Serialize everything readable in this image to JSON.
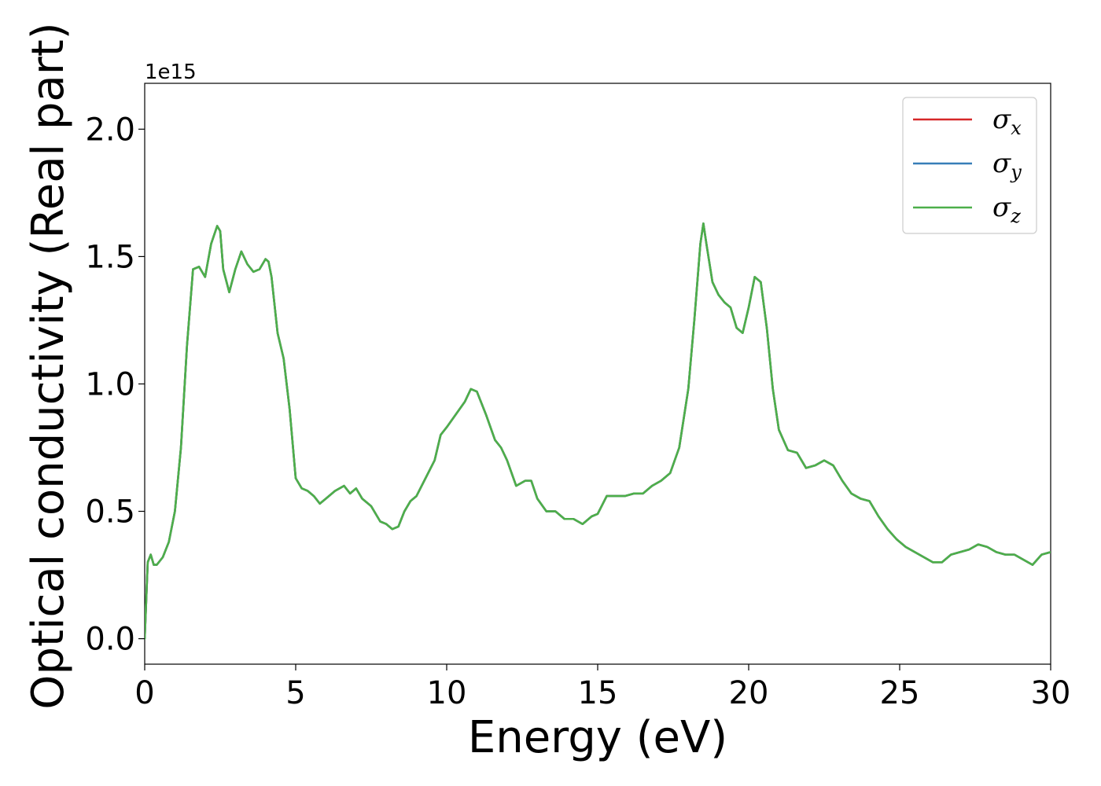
{
  "chart_data": {
    "type": "line",
    "title": "",
    "xlabel": "Energy (eV)",
    "ylabel": "Optical conductivity (Real part)",
    "y_offset_label": "1e15",
    "xlim": [
      0,
      30
    ],
    "ylim": [
      -0.1,
      2.18
    ],
    "x_ticks": [
      0,
      5,
      10,
      15,
      20,
      25,
      30
    ],
    "x_tick_labels": [
      "0",
      "5",
      "10",
      "15",
      "20",
      "25",
      "30"
    ],
    "y_ticks": [
      0.0,
      0.5,
      1.0,
      1.5,
      2.0
    ],
    "y_tick_labels": [
      "0.0",
      "0.5",
      "1.0",
      "1.5",
      "2.0"
    ],
    "grid": false,
    "legend_position": "top-right",
    "series": [
      {
        "name": "σx",
        "label_base": "σ",
        "label_sub": "x",
        "color": "#d62728",
        "x": [
          0,
          0.1,
          0.2,
          0.3,
          0.4,
          0.6,
          0.8,
          1.0,
          1.2,
          1.4,
          1.6,
          1.8,
          2.0,
          2.2,
          2.4,
          2.5,
          2.6,
          2.8,
          3.0,
          3.2,
          3.4,
          3.6,
          3.8,
          4.0,
          4.1,
          4.2,
          4.4,
          4.6,
          4.8,
          5.0,
          5.2,
          5.4,
          5.6,
          5.8,
          6.0,
          6.3,
          6.6,
          6.8,
          7.0,
          7.2,
          7.5,
          7.8,
          8.0,
          8.2,
          8.4,
          8.6,
          8.8,
          9.0,
          9.3,
          9.6,
          9.8,
          10.0,
          10.3,
          10.6,
          10.8,
          11.0,
          11.3,
          11.6,
          11.8,
          12.0,
          12.3,
          12.6,
          12.8,
          13.0,
          13.3,
          13.6,
          13.9,
          14.2,
          14.5,
          14.8,
          15.0,
          15.3,
          15.6,
          15.9,
          16.2,
          16.5,
          16.8,
          17.1,
          17.4,
          17.7,
          18.0,
          18.2,
          18.4,
          18.5,
          18.6,
          18.8,
          19.0,
          19.2,
          19.4,
          19.6,
          19.8,
          20.0,
          20.2,
          20.4,
          20.6,
          20.8,
          21.0,
          21.3,
          21.6,
          21.9,
          22.2,
          22.5,
          22.8,
          23.1,
          23.4,
          23.7,
          24.0,
          24.3,
          24.6,
          24.9,
          25.2,
          25.5,
          25.8,
          26.1,
          26.4,
          26.7,
          27.0,
          27.3,
          27.6,
          27.9,
          28.2,
          28.5,
          28.8,
          29.1,
          29.4,
          29.7,
          30.0
        ],
        "values": [
          0.0,
          0.3,
          0.33,
          0.29,
          0.29,
          0.32,
          0.38,
          0.5,
          0.75,
          1.15,
          1.45,
          1.46,
          1.42,
          1.55,
          1.62,
          1.6,
          1.45,
          1.36,
          1.45,
          1.52,
          1.47,
          1.44,
          1.45,
          1.49,
          1.48,
          1.42,
          1.2,
          1.1,
          0.9,
          0.63,
          0.59,
          0.58,
          0.56,
          0.53,
          0.55,
          0.58,
          0.6,
          0.57,
          0.59,
          0.55,
          0.52,
          0.46,
          0.45,
          0.43,
          0.44,
          0.5,
          0.54,
          0.56,
          0.63,
          0.7,
          0.8,
          0.83,
          0.88,
          0.93,
          0.98,
          0.97,
          0.88,
          0.78,
          0.75,
          0.7,
          0.6,
          0.62,
          0.62,
          0.55,
          0.5,
          0.5,
          0.47,
          0.47,
          0.45,
          0.48,
          0.49,
          0.56,
          0.56,
          0.56,
          0.57,
          0.57,
          0.6,
          0.62,
          0.65,
          0.75,
          0.98,
          1.25,
          1.55,
          1.63,
          1.55,
          1.4,
          1.35,
          1.32,
          1.3,
          1.22,
          1.2,
          1.3,
          1.42,
          1.4,
          1.22,
          0.98,
          0.82,
          0.74,
          0.73,
          0.67,
          0.68,
          0.7,
          0.68,
          0.62,
          0.57,
          0.55,
          0.54,
          0.48,
          0.43,
          0.39,
          0.36,
          0.34,
          0.32,
          0.3,
          0.3,
          0.33,
          0.34,
          0.35,
          0.37,
          0.36,
          0.34,
          0.33,
          0.33,
          0.31,
          0.29,
          0.33,
          0.34
        ]
      },
      {
        "name": "σy",
        "label_base": "σ",
        "label_sub": "y",
        "color": "#377eb8",
        "x": [
          0,
          0.1,
          0.2,
          0.3,
          0.4,
          0.6,
          0.8,
          1.0,
          1.2,
          1.4,
          1.6,
          1.8,
          2.0,
          2.2,
          2.4,
          2.5,
          2.6,
          2.8,
          3.0,
          3.2,
          3.4,
          3.6,
          3.8,
          4.0,
          4.1,
          4.2,
          4.4,
          4.6,
          4.8,
          5.0,
          5.2,
          5.4,
          5.6,
          5.8,
          6.0,
          6.3,
          6.6,
          6.8,
          7.0,
          7.2,
          7.5,
          7.8,
          8.0,
          8.2,
          8.4,
          8.6,
          8.8,
          9.0,
          9.3,
          9.6,
          9.8,
          10.0,
          10.3,
          10.6,
          10.8,
          11.0,
          11.3,
          11.6,
          11.8,
          12.0,
          12.3,
          12.6,
          12.8,
          13.0,
          13.3,
          13.6,
          13.9,
          14.2,
          14.5,
          14.8,
          15.0,
          15.3,
          15.6,
          15.9,
          16.2,
          16.5,
          16.8,
          17.1,
          17.4,
          17.7,
          18.0,
          18.2,
          18.4,
          18.5,
          18.6,
          18.8,
          19.0,
          19.2,
          19.4,
          19.6,
          19.8,
          20.0,
          20.2,
          20.4,
          20.6,
          20.8,
          21.0,
          21.3,
          21.6,
          21.9,
          22.2,
          22.5,
          22.8,
          23.1,
          23.4,
          23.7,
          24.0,
          24.3,
          24.6,
          24.9,
          25.2,
          25.5,
          25.8,
          26.1,
          26.4,
          26.7,
          27.0,
          27.3,
          27.6,
          27.9,
          28.2,
          28.5,
          28.8,
          29.1,
          29.4,
          29.7,
          30.0
        ],
        "values": [
          0.0,
          0.3,
          0.33,
          0.29,
          0.29,
          0.32,
          0.38,
          0.5,
          0.75,
          1.15,
          1.45,
          1.46,
          1.42,
          1.55,
          1.62,
          1.6,
          1.45,
          1.36,
          1.45,
          1.52,
          1.47,
          1.44,
          1.45,
          1.49,
          1.48,
          1.42,
          1.2,
          1.1,
          0.9,
          0.63,
          0.59,
          0.58,
          0.56,
          0.53,
          0.55,
          0.58,
          0.6,
          0.57,
          0.59,
          0.55,
          0.52,
          0.46,
          0.45,
          0.43,
          0.44,
          0.5,
          0.54,
          0.56,
          0.63,
          0.7,
          0.8,
          0.83,
          0.88,
          0.93,
          0.98,
          0.97,
          0.88,
          0.78,
          0.75,
          0.7,
          0.6,
          0.62,
          0.62,
          0.55,
          0.5,
          0.5,
          0.47,
          0.47,
          0.45,
          0.48,
          0.49,
          0.56,
          0.56,
          0.56,
          0.57,
          0.57,
          0.6,
          0.62,
          0.65,
          0.75,
          0.98,
          1.25,
          1.55,
          1.63,
          1.55,
          1.4,
          1.35,
          1.32,
          1.3,
          1.22,
          1.2,
          1.3,
          1.42,
          1.4,
          1.22,
          0.98,
          0.82,
          0.74,
          0.73,
          0.67,
          0.68,
          0.7,
          0.68,
          0.62,
          0.57,
          0.55,
          0.54,
          0.48,
          0.43,
          0.39,
          0.36,
          0.34,
          0.32,
          0.3,
          0.3,
          0.33,
          0.34,
          0.35,
          0.37,
          0.36,
          0.34,
          0.33,
          0.33,
          0.31,
          0.29,
          0.33,
          0.34
        ]
      },
      {
        "name": "σz",
        "label_base": "σ",
        "label_sub": "z",
        "color": "#4daf4a",
        "x": [
          0,
          0.1,
          0.2,
          0.3,
          0.4,
          0.6,
          0.8,
          1.0,
          1.2,
          1.4,
          1.6,
          1.8,
          2.0,
          2.2,
          2.4,
          2.5,
          2.6,
          2.8,
          3.0,
          3.2,
          3.4,
          3.6,
          3.8,
          4.0,
          4.1,
          4.2,
          4.4,
          4.6,
          4.8,
          5.0,
          5.2,
          5.4,
          5.6,
          5.8,
          6.0,
          6.3,
          6.6,
          6.8,
          7.0,
          7.2,
          7.5,
          7.8,
          8.0,
          8.2,
          8.4,
          8.6,
          8.8,
          9.0,
          9.3,
          9.6,
          9.8,
          10.0,
          10.3,
          10.6,
          10.8,
          11.0,
          11.3,
          11.6,
          11.8,
          12.0,
          12.3,
          12.6,
          12.8,
          13.0,
          13.3,
          13.6,
          13.9,
          14.2,
          14.5,
          14.8,
          15.0,
          15.3,
          15.6,
          15.9,
          16.2,
          16.5,
          16.8,
          17.1,
          17.4,
          17.7,
          18.0,
          18.2,
          18.4,
          18.5,
          18.6,
          18.8,
          19.0,
          19.2,
          19.4,
          19.6,
          19.8,
          20.0,
          20.2,
          20.4,
          20.6,
          20.8,
          21.0,
          21.3,
          21.6,
          21.9,
          22.2,
          22.5,
          22.8,
          23.1,
          23.4,
          23.7,
          24.0,
          24.3,
          24.6,
          24.9,
          25.2,
          25.5,
          25.8,
          26.1,
          26.4,
          26.7,
          27.0,
          27.3,
          27.6,
          27.9,
          28.2,
          28.5,
          28.8,
          29.1,
          29.4,
          29.7,
          30.0
        ],
        "values": [
          0.0,
          0.3,
          0.33,
          0.29,
          0.29,
          0.32,
          0.38,
          0.5,
          0.75,
          1.15,
          1.45,
          1.46,
          1.42,
          1.55,
          1.62,
          1.6,
          1.45,
          1.36,
          1.45,
          1.52,
          1.47,
          1.44,
          1.45,
          1.49,
          1.48,
          1.42,
          1.2,
          1.1,
          0.9,
          0.63,
          0.59,
          0.58,
          0.56,
          0.53,
          0.55,
          0.58,
          0.6,
          0.57,
          0.59,
          0.55,
          0.52,
          0.46,
          0.45,
          0.43,
          0.44,
          0.5,
          0.54,
          0.56,
          0.63,
          0.7,
          0.8,
          0.83,
          0.88,
          0.93,
          0.98,
          0.97,
          0.88,
          0.78,
          0.75,
          0.7,
          0.6,
          0.62,
          0.62,
          0.55,
          0.5,
          0.5,
          0.47,
          0.47,
          0.45,
          0.48,
          0.49,
          0.56,
          0.56,
          0.56,
          0.57,
          0.57,
          0.6,
          0.62,
          0.65,
          0.75,
          0.98,
          1.25,
          1.55,
          1.63,
          1.55,
          1.4,
          1.35,
          1.32,
          1.3,
          1.22,
          1.2,
          1.3,
          1.42,
          1.4,
          1.22,
          0.98,
          0.82,
          0.74,
          0.73,
          0.67,
          0.68,
          0.7,
          0.68,
          0.62,
          0.57,
          0.55,
          0.54,
          0.48,
          0.43,
          0.39,
          0.36,
          0.34,
          0.32,
          0.3,
          0.3,
          0.33,
          0.34,
          0.35,
          0.37,
          0.36,
          0.34,
          0.33,
          0.33,
          0.31,
          0.29,
          0.33,
          0.34
        ]
      }
    ]
  }
}
